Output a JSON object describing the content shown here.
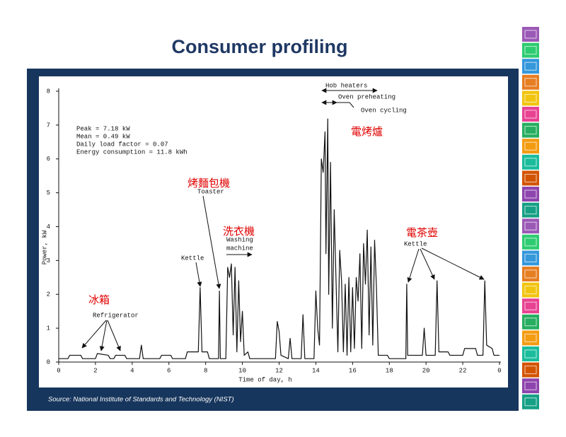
{
  "title": "Consumer profiling",
  "source": "Source: National Institute of Standards and Technology (NIST)",
  "chart_data": {
    "type": "line",
    "x_label": "Time of day, h",
    "y_label": "Power, kW",
    "color": "#111111",
    "stats": [
      "Peak = 7.18 kW",
      "Mean = 0.49 kW",
      "Daily load factor = 0.07",
      "Energy consumption = 11.8 kWh"
    ],
    "annotations": [
      "Hob heaters",
      "Oven preheating",
      "Oven cycling",
      "Toaster",
      "Kettle",
      "Washing",
      "machine",
      "Kettle",
      "Refrigerator"
    ],
    "labels_zh": [
      "冰箱",
      "烤麵包機",
      "洗衣機",
      "電烤爐",
      "電茶壺"
    ],
    "xlim": [
      0,
      24
    ],
    "ylim": [
      0,
      8
    ],
    "xticks": [
      0,
      2,
      4,
      6,
      8,
      10,
      12,
      14,
      16,
      18,
      20,
      22,
      {
        "value": 24,
        "label": "0"
      }
    ],
    "yticks": [
      0,
      1,
      2,
      3,
      4,
      5,
      6,
      7,
      8
    ],
    "x": [
      0,
      0.5,
      0.6,
      1.2,
      1.3,
      2.0,
      2.1,
      2.7,
      2.8,
      3.0,
      3.1,
      3.6,
      3.7,
      4.4,
      4.5,
      4.6,
      5.5,
      5.6,
      6.1,
      6.2,
      6.9,
      7.0,
      7.6,
      7.7,
      7.8,
      8.1,
      8.2,
      8.7,
      8.75,
      8.8,
      9.1,
      9.2,
      9.3,
      9.4,
      9.5,
      9.6,
      9.7,
      9.8,
      9.9,
      10.0,
      10.1,
      10.3,
      10.4,
      11.8,
      11.9,
      12.0,
      12.1,
      12.5,
      12.6,
      12.7,
      13.2,
      13.3,
      13.4,
      13.9,
      14.0,
      14.1,
      14.2,
      14.3,
      14.4,
      14.5,
      14.55,
      14.65,
      14.7,
      14.8,
      14.9,
      15.0,
      15.1,
      15.2,
      15.3,
      15.4,
      15.5,
      15.6,
      15.7,
      15.8,
      15.9,
      16.0,
      16.1,
      16.2,
      16.3,
      16.4,
      16.5,
      16.6,
      16.7,
      16.8,
      16.9,
      17.0,
      17.1,
      17.2,
      17.3,
      17.4,
      17.9,
      18.0,
      18.9,
      18.95,
      19.0,
      19.8,
      19.9,
      20.0,
      20.5,
      20.6,
      20.7,
      21.2,
      21.3,
      22.0,
      22.1,
      22.7,
      22.8,
      23.1,
      23.2,
      23.3,
      23.6,
      23.7,
      24.0
    ],
    "values": [
      0.1,
      0.1,
      0.2,
      0.2,
      0.1,
      0.1,
      0.25,
      0.2,
      0.1,
      0.1,
      0.2,
      0.2,
      0.1,
      0.1,
      0.5,
      0.1,
      0.1,
      0.2,
      0.2,
      0.1,
      0.1,
      0.3,
      0.3,
      2.2,
      0.3,
      0.3,
      0.1,
      0.1,
      2.1,
      0.1,
      0.1,
      2.8,
      2.5,
      2.9,
      0.8,
      2.8,
      0.3,
      2.4,
      0.6,
      1.5,
      0.2,
      0.3,
      0.1,
      0.1,
      1.2,
      0.9,
      0.2,
      0.1,
      0.7,
      0.1,
      0.1,
      1.4,
      0.1,
      0.1,
      2.1,
      1.0,
      0.5,
      6.0,
      5.6,
      6.8,
      3.2,
      7.18,
      2.0,
      5.9,
      1.0,
      4.5,
      2.4,
      0.3,
      3.3,
      2.4,
      0.3,
      2.3,
      0.2,
      2.5,
      0.3,
      2.2,
      0.4,
      2.5,
      1.8,
      3.2,
      0.4,
      3.5,
      2.3,
      3.9,
      0.8,
      3.4,
      0.5,
      3.6,
      2.2,
      0.2,
      0.2,
      0.1,
      0.1,
      2.3,
      0.2,
      0.2,
      1.0,
      0.2,
      0.2,
      2.4,
      0.3,
      0.3,
      0.2,
      0.2,
      0.4,
      0.4,
      0.2,
      0.2,
      2.4,
      0.5,
      0.4,
      0.2,
      0.2
    ]
  }
}
